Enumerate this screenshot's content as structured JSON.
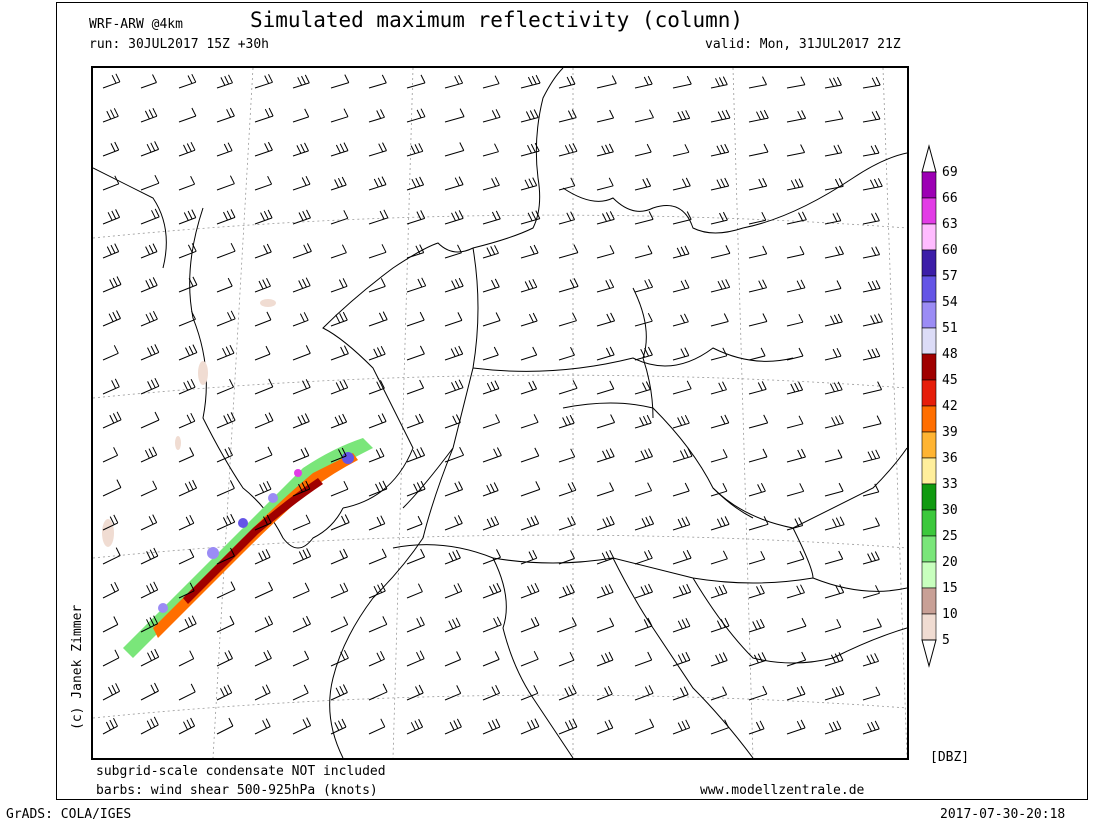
{
  "header": {
    "model": "WRF-ARW @4km",
    "title": "Simulated maximum reflectivity (column)",
    "run": "run: 30JUL2017 15Z +30h",
    "valid": "valid: Mon, 31JUL2017 21Z"
  },
  "footer": {
    "note1": "subgrid-scale condensate NOT included",
    "note2": "barbs: wind shear 500-925hPa (knots)",
    "website": "www.modellzentrale.de",
    "software": "GrADS: COLA/IGES",
    "timestamp": "2017-07-30-20:18"
  },
  "copyright": "(c) Janek Zimmer",
  "legend": {
    "unit": "[DBZ]",
    "levels": [
      {
        "value": "69",
        "color": "#9c00b4"
      },
      {
        "value": "66",
        "color": "#e23ce6"
      },
      {
        "value": "63",
        "color": "#ffbcff"
      },
      {
        "value": "60",
        "color": "#3c1ea8"
      },
      {
        "value": "57",
        "color": "#6455e6"
      },
      {
        "value": "54",
        "color": "#9b8cf5"
      },
      {
        "value": "51",
        "color": "#dcdcf7"
      },
      {
        "value": "48",
        "color": "#a00000"
      },
      {
        "value": "45",
        "color": "#e61e0a"
      },
      {
        "value": "42",
        "color": "#ff6e00"
      },
      {
        "value": "39",
        "color": "#ffb432"
      },
      {
        "value": "36",
        "color": "#ffef9c"
      },
      {
        "value": "33",
        "color": "#109a10"
      },
      {
        "value": "30",
        "color": "#3cc83c"
      },
      {
        "value": "25",
        "color": "#7ae67a"
      },
      {
        "value": "20",
        "color": "#c8ffbe"
      },
      {
        "value": "15",
        "color": "#c8a096"
      },
      {
        "value": "10",
        "color": "#f0dcd2"
      },
      {
        "value": "5",
        "color": "#ffffff"
      }
    ]
  }
}
